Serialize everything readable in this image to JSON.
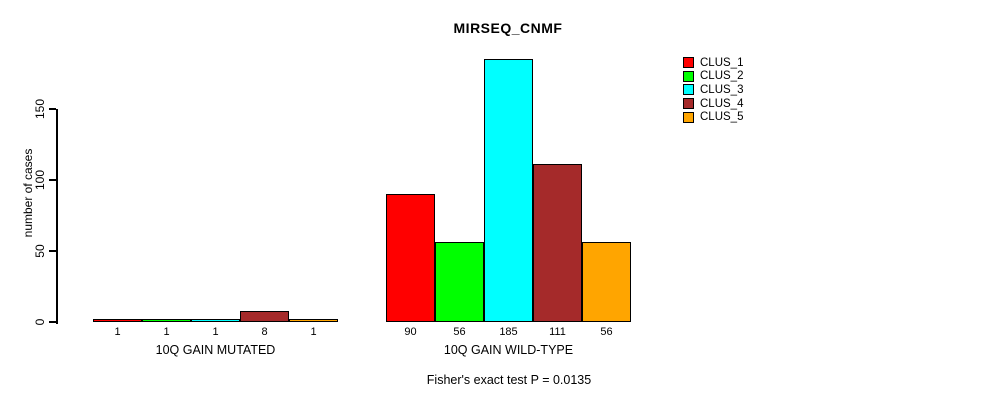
{
  "title": "MIRSEQ_CNMF",
  "y_axis": {
    "label": "number of cases",
    "tick_labels": [
      "0",
      "50",
      "100",
      "150"
    ]
  },
  "footnote": "Fisher's exact test P = 0.0135",
  "chart_data": {
    "type": "bar",
    "title": "MIRSEQ_CNMF",
    "xlabel": "",
    "ylabel": "number of cases",
    "ylim": [
      0,
      185
    ],
    "yticks": [
      0,
      50,
      100,
      150
    ],
    "grid": false,
    "legend_position": "top-right",
    "categories": [
      "10Q GAIN MUTATED",
      "10Q GAIN WILD-TYPE"
    ],
    "series": [
      {
        "name": "CLUS_1",
        "color": "#FF0000",
        "values": [
          1,
          90
        ]
      },
      {
        "name": "CLUS_2",
        "color": "#00FF00",
        "values": [
          1,
          56
        ]
      },
      {
        "name": "CLUS_3",
        "color": "#00FFFF",
        "values": [
          1,
          185
        ]
      },
      {
        "name": "CLUS_4",
        "color": "#A52A2A",
        "values": [
          8,
          111
        ]
      },
      {
        "name": "CLUS_5",
        "color": "#FFA500",
        "values": [
          1,
          56
        ]
      }
    ],
    "bar_value_labels": [
      [
        1,
        1,
        1,
        8,
        1
      ],
      [
        90,
        56,
        185,
        111,
        56
      ]
    ],
    "annotation": "Fisher's exact test P = 0.0135"
  }
}
